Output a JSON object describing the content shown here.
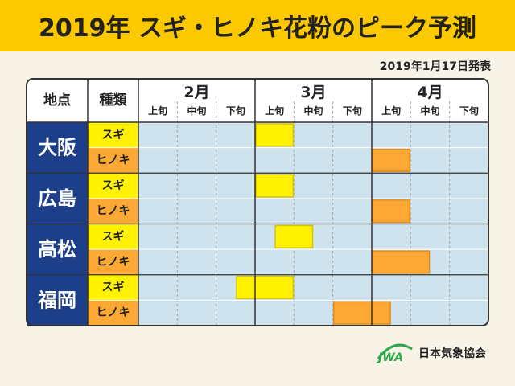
{
  "header": {
    "title": "2019年 スギ・ヒノキ花粉のピーク予測",
    "published": "2019年1月17日発表"
  },
  "footer": {
    "org_name": "日本気象協会",
    "logo_mark_text": "JWA"
  },
  "colors": {
    "title_bg": "#fcc800",
    "city_bg": "#1d3f8a",
    "grid_bg": "#cfe3ee",
    "sugi": "#fff200",
    "hinoki": "#fba834"
  },
  "chart_data": {
    "type": "table",
    "corner_labels": {
      "point": "地点",
      "kind": "種類"
    },
    "months": [
      "2月",
      "3月",
      "4月"
    ],
    "dekads": [
      "上旬",
      "中旬",
      "下旬"
    ],
    "cities": [
      {
        "name": "大阪",
        "rows": [
          {
            "type": "スギ",
            "peak_start": 3,
            "peak_end": 4
          },
          {
            "type": "ヒノキ",
            "peak_start": 6,
            "peak_end": 7
          }
        ]
      },
      {
        "name": "広島",
        "rows": [
          {
            "type": "スギ",
            "peak_start": 3,
            "peak_end": 4
          },
          {
            "type": "ヒノキ",
            "peak_start": 6,
            "peak_end": 7
          }
        ]
      },
      {
        "name": "高松",
        "rows": [
          {
            "type": "スギ",
            "peak_start": 3.5,
            "peak_end": 4.5
          },
          {
            "type": "ヒノキ",
            "peak_start": 6,
            "peak_end": 7.5
          }
        ]
      },
      {
        "name": "福岡",
        "rows": [
          {
            "type": "スギ",
            "peak_start": 2.5,
            "peak_end": 4
          },
          {
            "type": "ヒノキ",
            "peak_start": 5,
            "peak_end": 6.5
          }
        ]
      }
    ]
  }
}
